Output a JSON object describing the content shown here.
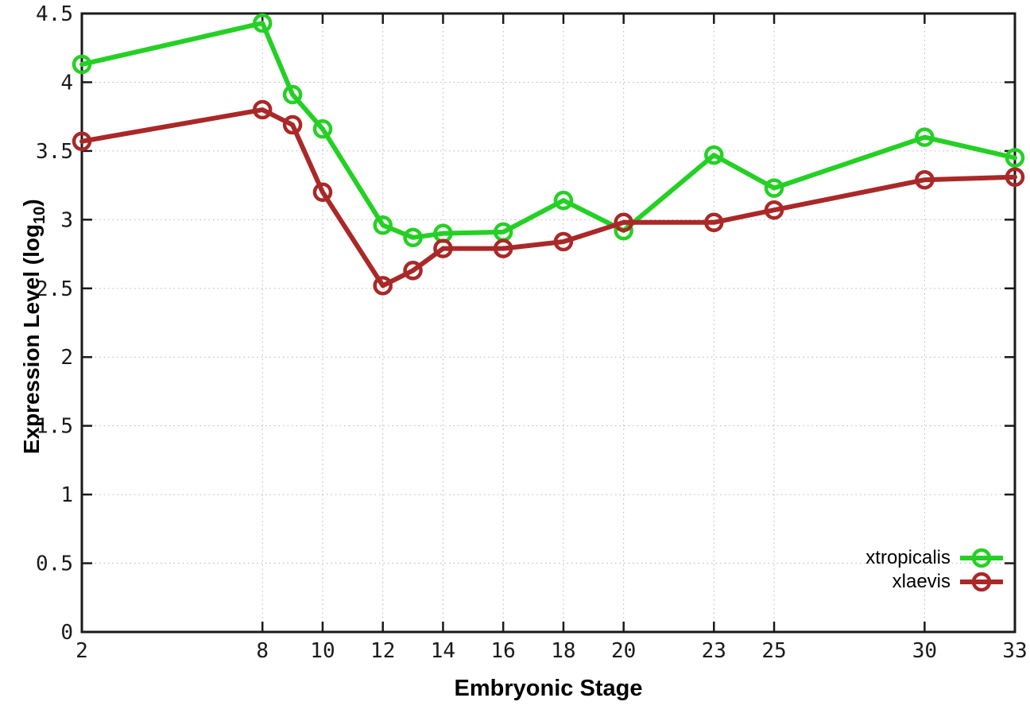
{
  "chart_data": {
    "type": "line",
    "title": "",
    "xlabel": "Embryonic Stage",
    "ylabel": "Expression Level (log10)",
    "ylabel_parts": {
      "pre": "Expression Level (log",
      "sub": "10",
      "post": ")"
    },
    "xlim": [
      2,
      33
    ],
    "ylim": [
      0,
      4.5
    ],
    "xticks": [
      2,
      8,
      10,
      12,
      14,
      16,
      18,
      20,
      23,
      25,
      30,
      33
    ],
    "yticks": [
      0,
      0.5,
      1,
      1.5,
      2,
      2.5,
      3,
      3.5,
      4,
      4.5
    ],
    "grid": true,
    "legend_position": "inside-bottom-right",
    "x": [
      2,
      8,
      9,
      10,
      12,
      13,
      14,
      16,
      18,
      20,
      23,
      25,
      30,
      33
    ],
    "series": [
      {
        "name": "xtropicalis",
        "color": "#25d025",
        "values": [
          4.13,
          4.43,
          3.91,
          3.66,
          2.96,
          2.87,
          2.9,
          2.91,
          3.14,
          2.92,
          3.47,
          3.23,
          3.6,
          3.45
        ]
      },
      {
        "name": "xlaevis",
        "color": "#aa2828",
        "values": [
          3.57,
          3.8,
          3.69,
          3.2,
          2.52,
          2.63,
          2.79,
          2.79,
          2.84,
          2.98,
          2.98,
          3.07,
          3.29,
          3.31
        ]
      }
    ],
    "axis_color": "#1a1a1a",
    "grid_color": "#b5b5b5",
    "background": "#ffffff"
  }
}
